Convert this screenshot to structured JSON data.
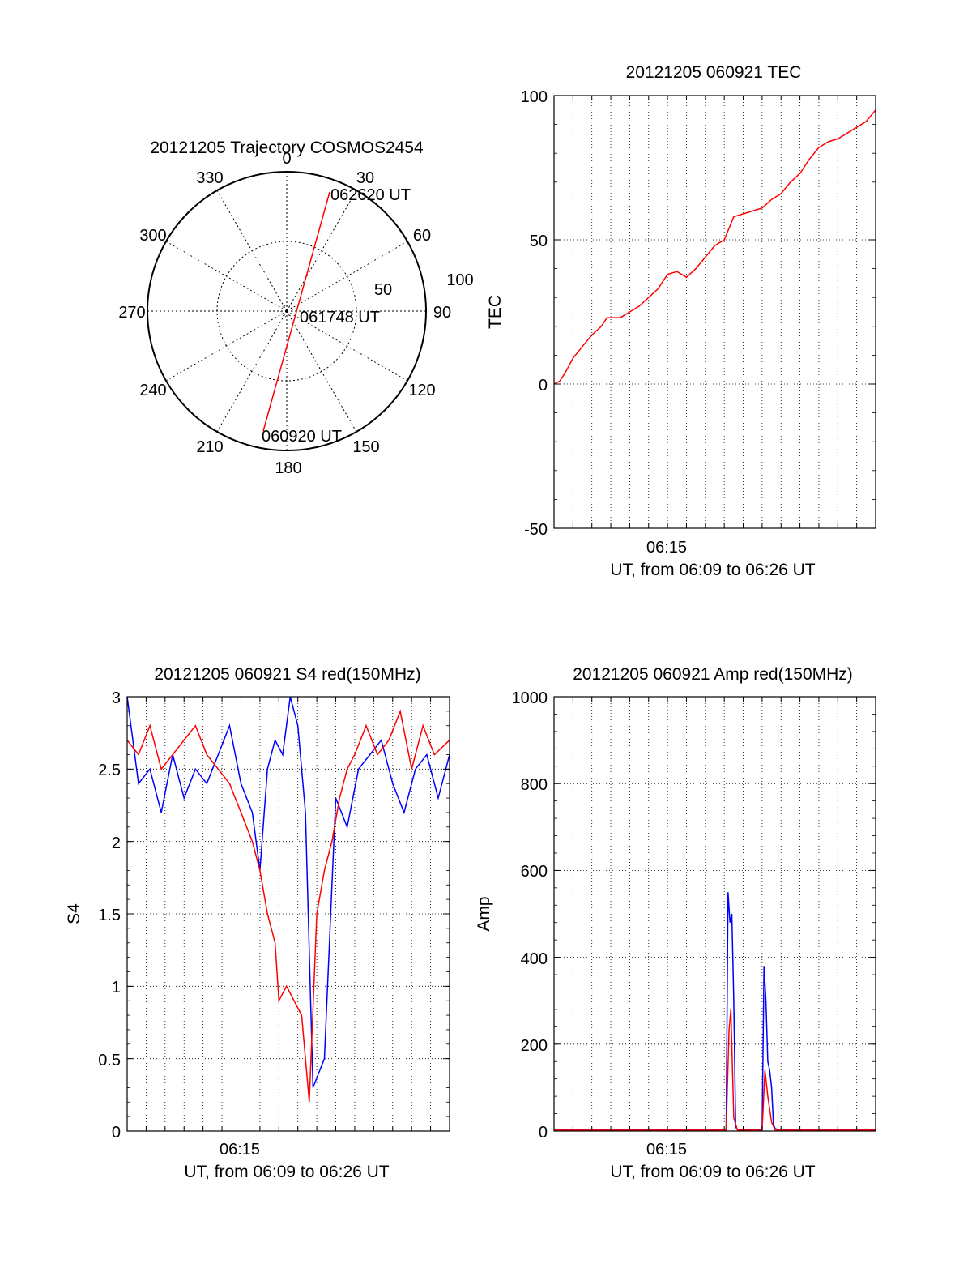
{
  "colors": {
    "primary": "#ff0000",
    "secondary": "#0000ff",
    "axis": "#000000",
    "grid": "#000000"
  },
  "chart_data": [
    {
      "type": "polar",
      "title": "20121205 Trajectory COSMOS2454",
      "azimuth_labels": [
        "0",
        "30",
        "60",
        "90",
        "120",
        "150",
        "180",
        "210",
        "240",
        "270",
        "300",
        "330"
      ],
      "radial_labels": [
        "50",
        "100"
      ],
      "track": [
        {
          "az": 197,
          "el": 10,
          "label": "060920 UT"
        },
        {
          "az": 90,
          "el": 90,
          "label": "061748 UT"
        },
        {
          "az": 20,
          "el": 10,
          "label": "062620 UT"
        }
      ]
    },
    {
      "type": "line",
      "title": "20121205 060921 TEC",
      "xlabel": "UT, from 06:09 to 06:26 UT",
      "ylabel": "TEC",
      "xtick_labels": [
        "06:15"
      ],
      "ytick_labels": [
        "100",
        "50",
        "0",
        "-50"
      ],
      "xlim": [
        0,
        17
      ],
      "ylim": [
        -50,
        100
      ],
      "series": [
        {
          "color": "#ff0000",
          "x": [
            0,
            0.3,
            0.6,
            1,
            1.5,
            2,
            2.5,
            2.8,
            3,
            3.5,
            4,
            4.5,
            5,
            5.5,
            6,
            6.5,
            7,
            7.5,
            8,
            8.5,
            9,
            9.5,
            10,
            10.5,
            11,
            11.5,
            12,
            12.5,
            13,
            13.5,
            14,
            14.5,
            15,
            15.5,
            16,
            16.5,
            17
          ],
          "y": [
            0,
            1,
            4,
            9,
            13,
            17,
            20,
            23,
            23,
            23,
            25,
            27,
            30,
            33,
            38,
            39,
            37,
            40,
            44,
            48,
            50,
            58,
            59,
            60,
            61,
            64,
            66,
            70,
            73,
            78,
            82,
            84,
            85,
            87,
            89,
            91,
            95
          ]
        }
      ]
    },
    {
      "type": "line",
      "title": "20121205 060921 S4 red(150MHz)",
      "xlabel": "UT, from 06:09 to 06:26 UT",
      "ylabel": "S4",
      "xtick_labels": [
        "06:15"
      ],
      "ytick_labels": [
        "3",
        "2.5",
        "2",
        "1.5",
        "1",
        "0.5",
        "0"
      ],
      "xlim": [
        0,
        17
      ],
      "ylim": [
        0,
        3
      ],
      "series": [
        {
          "color": "#0000ff",
          "x": [
            0,
            0.6,
            1.2,
            1.8,
            2.4,
            3,
            3.6,
            4.2,
            4.8,
            5.4,
            6,
            6.6,
            7,
            7.4,
            7.8,
            8.2,
            8.6,
            9,
            9.4,
            9.8,
            10.4,
            11,
            11.6,
            12.2,
            12.8,
            13.4,
            14,
            14.6,
            15.2,
            15.8,
            16.4,
            17
          ],
          "y": [
            3,
            2.4,
            2.5,
            2.2,
            2.6,
            2.3,
            2.5,
            2.4,
            2.6,
            2.8,
            2.4,
            2.2,
            1.8,
            2.5,
            2.7,
            2.6,
            3,
            2.8,
            2.2,
            0.3,
            0.5,
            2.3,
            2.1,
            2.5,
            2.6,
            2.7,
            2.4,
            2.2,
            2.5,
            2.6,
            2.3,
            2.6
          ]
        },
        {
          "color": "#ff0000",
          "x": [
            0,
            0.6,
            1.2,
            1.8,
            2.4,
            3,
            3.6,
            4.2,
            4.8,
            5.4,
            6,
            6.6,
            7,
            7.4,
            7.8,
            8,
            8.4,
            8.8,
            9.2,
            9.6,
            10,
            10.4,
            10.8,
            11.2,
            11.6,
            12,
            12.6,
            13.2,
            13.8,
            14.4,
            15,
            15.6,
            16.2,
            17
          ],
          "y": [
            2.7,
            2.6,
            2.8,
            2.5,
            2.6,
            2.7,
            2.8,
            2.6,
            2.5,
            2.4,
            2.2,
            2.0,
            1.8,
            1.5,
            1.3,
            0.9,
            1.0,
            0.9,
            0.8,
            0.2,
            1.5,
            1.8,
            2.0,
            2.3,
            2.5,
            2.6,
            2.8,
            2.6,
            2.7,
            2.9,
            2.5,
            2.8,
            2.6,
            2.7
          ]
        }
      ]
    },
    {
      "type": "line",
      "title": "20121205 060921 Amp red(150MHz)",
      "xlabel": "UT, from 06:09 to 06:26 UT",
      "ylabel": "Amp",
      "xtick_labels": [
        "06:15"
      ],
      "ytick_labels": [
        "1000",
        "800",
        "600",
        "400",
        "200",
        "0"
      ],
      "xlim": [
        0,
        17
      ],
      "ylim": [
        0,
        1000
      ],
      "series": [
        {
          "color": "#0000ff",
          "x": [
            0,
            4,
            8,
            9.1,
            9.2,
            9.3,
            9.4,
            9.5,
            9.6,
            9.7,
            10,
            11,
            11.1,
            11.2,
            11.3,
            11.4,
            11.5,
            11.6,
            11.7,
            12,
            14,
            17
          ],
          "y": [
            3,
            3,
            3,
            3,
            550,
            480,
            500,
            300,
            10,
            3,
            3,
            3,
            380,
            300,
            160,
            140,
            100,
            15,
            5,
            3,
            3,
            3
          ]
        },
        {
          "color": "#ff0000",
          "x": [
            0,
            4,
            8,
            9.1,
            9.25,
            9.35,
            9.5,
            9.7,
            10,
            11,
            11.15,
            11.3,
            11.5,
            11.7,
            12,
            17
          ],
          "y": [
            2,
            2,
            2,
            2,
            230,
            280,
            30,
            2,
            2,
            2,
            140,
            80,
            20,
            2,
            2,
            2
          ]
        }
      ]
    }
  ]
}
